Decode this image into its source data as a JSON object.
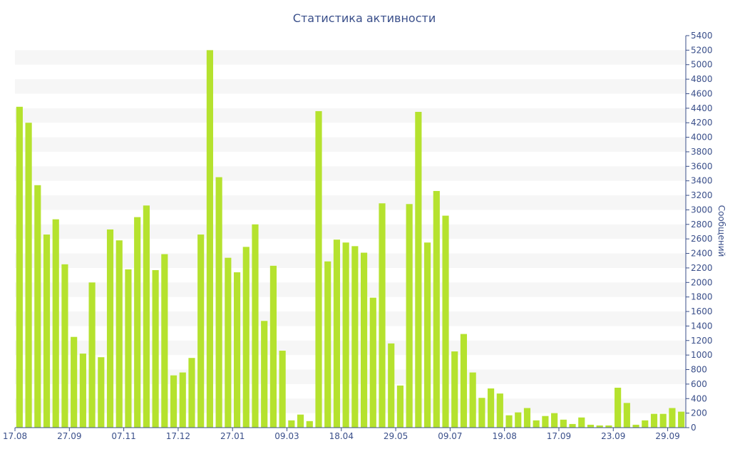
{
  "chart_data": {
    "type": "bar",
    "title": "Статистика активности",
    "xlabel": "",
    "ylabel": "Сообщений",
    "ylim": [
      0,
      5400
    ],
    "ytick_step": 200,
    "grid": "horizontal-bands",
    "bar_color": "#b5e22e",
    "text_color": "#3a4f8a",
    "x_tick_labels": [
      {
        "index": 0,
        "label": "17.08"
      },
      {
        "index": 6,
        "label": "27.09"
      },
      {
        "index": 12,
        "label": "07.11"
      },
      {
        "index": 18,
        "label": "17.12"
      },
      {
        "index": 24,
        "label": "27.01"
      },
      {
        "index": 30,
        "label": "09.03"
      },
      {
        "index": 36,
        "label": "18.04"
      },
      {
        "index": 42,
        "label": "29.05"
      },
      {
        "index": 48,
        "label": "09.07"
      },
      {
        "index": 54,
        "label": "19.08"
      },
      {
        "index": 60,
        "label": "17.09"
      },
      {
        "index": 66,
        "label": "23.09"
      },
      {
        "index": 72,
        "label": "29.09"
      }
    ],
    "values": [
      4420,
      4200,
      3340,
      2660,
      2870,
      2250,
      1250,
      1020,
      2000,
      970,
      2730,
      2580,
      2180,
      2900,
      3060,
      2170,
      2390,
      720,
      760,
      960,
      2660,
      5200,
      3450,
      2340,
      2140,
      2490,
      2800,
      1470,
      2230,
      1060,
      100,
      180,
      90,
      4360,
      2290,
      2590,
      2550,
      2500,
      2410,
      1790,
      3090,
      1160,
      580,
      3080,
      4350,
      2550,
      3260,
      2920,
      1050,
      1290,
      760,
      410,
      540,
      470,
      170,
      210,
      270,
      100,
      160,
      200,
      110,
      50,
      140,
      40,
      30,
      30,
      550,
      340,
      40,
      100,
      190,
      190,
      270,
      220
    ]
  }
}
